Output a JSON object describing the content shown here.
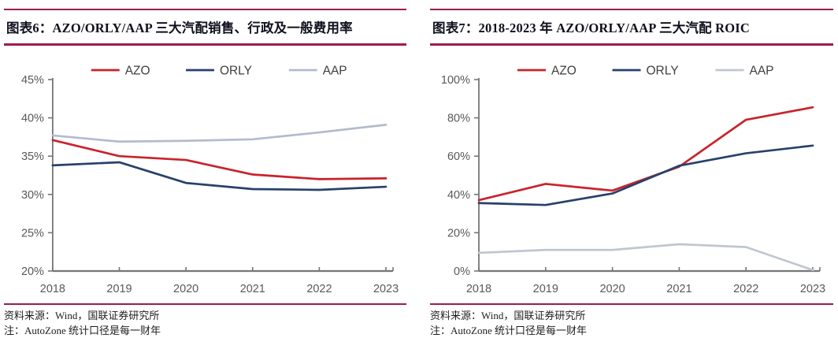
{
  "accent_rule_color": "#9D1C4F",
  "panels": [
    {
      "title": "图表6：AZO/ORLY/AAP 三大汽配销售、行政及一般费用率",
      "source": "资料来源：Wind，国联证券研究所",
      "note": "注：AutoZone 统计口径是每一财年"
    },
    {
      "title": "图表7：2018-2023 年 AZO/ORLY/AAP 三大汽配 ROIC",
      "source": "资料来源：Wind，国联证券研究所",
      "note": "注：AutoZone 统计口径是每一财年"
    }
  ],
  "chart_data": [
    {
      "type": "line",
      "title": "AZO/ORLY/AAP 三大汽配销售、行政及一般费用率",
      "categories": [
        "2018",
        "2019",
        "2020",
        "2021",
        "2022",
        "2023"
      ],
      "series": [
        {
          "name": "AZO",
          "color": "#C8232B",
          "values": [
            37.1,
            35.0,
            34.5,
            32.6,
            32.0,
            32.1
          ]
        },
        {
          "name": "ORLY",
          "color": "#27416B",
          "values": [
            33.8,
            34.2,
            31.5,
            30.7,
            30.6,
            31.0
          ]
        },
        {
          "name": "AAP",
          "color": "#B2BBCF",
          "values": [
            37.7,
            36.9,
            37.0,
            37.2,
            38.1,
            39.1
          ]
        }
      ],
      "xlabel": "",
      "ylabel": "",
      "ylim": [
        20,
        45
      ],
      "ystep": 5,
      "ytick_suffix": "%",
      "grid": false,
      "legend_position": "top",
      "axis_color": "#767676",
      "tick_label_color": "#595959"
    },
    {
      "type": "line",
      "title": "2018-2023 年 AZO/ORLY/AAP 三大汽配 ROIC",
      "categories": [
        "2018",
        "2019",
        "2020",
        "2021",
        "2022",
        "2023"
      ],
      "series": [
        {
          "name": "AZO",
          "color": "#C8232B",
          "values": [
            37.0,
            45.5,
            42.0,
            54.5,
            79.0,
            85.5
          ]
        },
        {
          "name": "ORLY",
          "color": "#27416B",
          "values": [
            35.5,
            34.5,
            40.5,
            55.0,
            61.5,
            65.5
          ]
        },
        {
          "name": "AAP",
          "color": "#C0C6D1",
          "values": [
            9.5,
            11.0,
            11.0,
            14.0,
            12.5,
            0.5
          ]
        }
      ],
      "xlabel": "",
      "ylabel": "",
      "ylim": [
        0,
        100
      ],
      "ystep": 20,
      "ytick_suffix": "%",
      "grid": false,
      "legend_position": "top",
      "axis_color": "#767676",
      "tick_label_color": "#595959"
    }
  ]
}
